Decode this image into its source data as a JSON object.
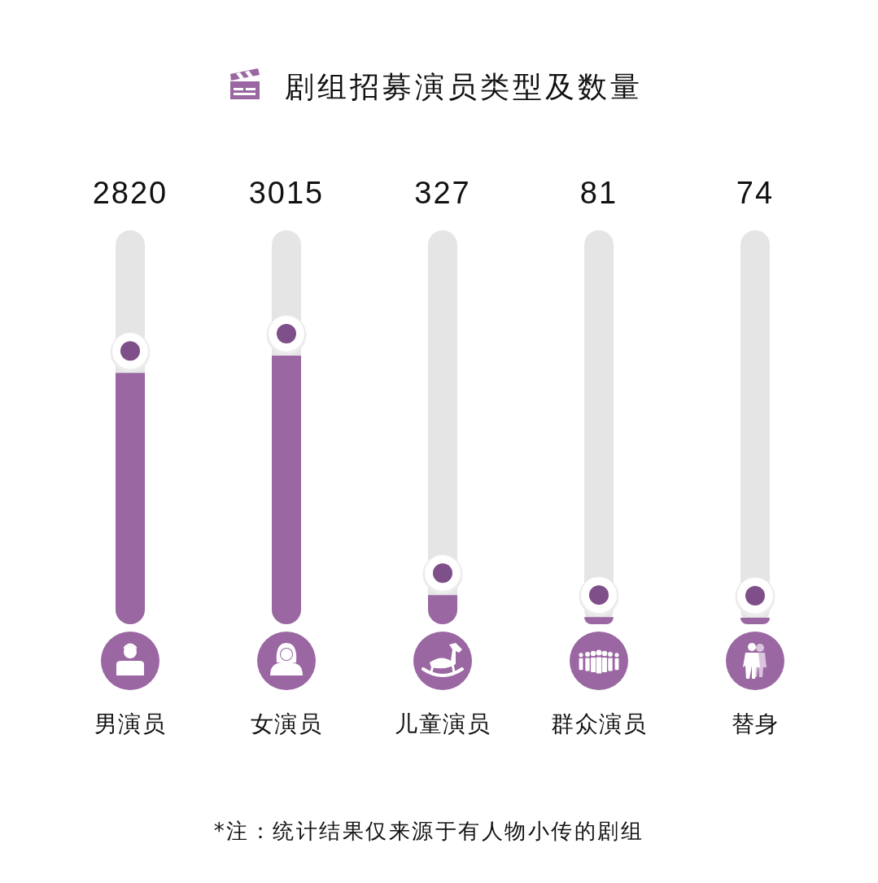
{
  "chart_data": {
    "type": "bar",
    "title": "剧组招募演员类型及数量",
    "categories": [
      "男演员",
      "女演员",
      "儿童演员",
      "群众演员",
      "替身"
    ],
    "values": [
      2820,
      3015,
      327,
      81,
      74
    ],
    "color": "#9b67a3",
    "data_labels": true,
    "annotations": [
      "*注：统计结果仅来源于有人物小传的剧组"
    ]
  }
}
